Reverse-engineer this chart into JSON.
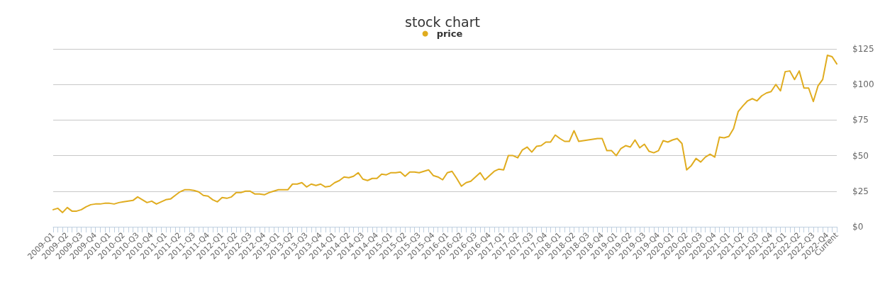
{
  "chart_data": {
    "type": "line",
    "title": "stock chart",
    "categories": [
      "2009-Q1",
      null,
      null,
      "2009-Q2",
      null,
      null,
      "2009-Q3",
      null,
      null,
      "2009-Q4",
      null,
      null,
      "2010-Q1",
      null,
      null,
      "2010-Q2",
      null,
      null,
      "2010-Q3",
      null,
      null,
      "2010-Q4",
      null,
      null,
      "2011-Q1",
      null,
      null,
      "2011-Q2",
      null,
      null,
      "2011-Q3",
      null,
      null,
      "2011-Q4",
      null,
      null,
      "2012-Q1",
      null,
      null,
      "2012-Q2",
      null,
      null,
      "2012-Q3",
      null,
      null,
      "2012-Q4",
      null,
      null,
      "2013-Q1",
      null,
      null,
      "2013-Q2",
      null,
      null,
      "2013-Q3",
      null,
      null,
      "2013-Q4",
      null,
      null,
      "2014-Q1",
      null,
      null,
      "2014-Q2",
      null,
      null,
      "2014-Q3",
      null,
      null,
      "2014-Q4",
      null,
      null,
      "2015-Q1",
      null,
      null,
      "2015-Q2",
      null,
      null,
      "2015-Q3",
      null,
      null,
      "2015-Q4",
      null,
      null,
      "2016-Q1",
      null,
      null,
      "2016-Q2",
      null,
      null,
      "2016-Q3",
      null,
      null,
      "2016-Q4",
      null,
      null,
      "2017-Q1",
      null,
      null,
      "2017-Q2",
      null,
      null,
      "2017-Q3",
      null,
      null,
      "2017-Q4",
      null,
      null,
      "2018-Q1",
      null,
      null,
      "2018-Q2",
      null,
      null,
      "2018-Q3",
      null,
      null,
      "2018-Q4",
      null,
      null,
      "2019-Q1",
      null,
      null,
      "2019-Q2",
      null,
      null,
      "2019-Q3",
      null,
      null,
      "2019-Q4",
      null,
      null,
      "2020-Q1",
      null,
      null,
      "2020-Q2",
      null,
      null,
      "2020-Q3",
      null,
      null,
      "2020-Q4",
      null,
      null,
      "2021-Q1",
      null,
      null,
      "2021-Q2",
      null,
      null,
      "2021-Q3",
      null,
      null,
      "2021-Q4",
      null,
      null,
      "2022-Q1",
      null,
      null,
      "2022-Q2",
      null,
      null,
      "2022-Q3",
      null,
      null,
      "2022-Q4",
      null,
      "Current"
    ],
    "series": [
      {
        "name": "price",
        "color": "#e0ac1f",
        "values": [
          12,
          13,
          10,
          13.5,
          11,
          11,
          12,
          14,
          15.5,
          16,
          16,
          16.5,
          16.5,
          16,
          17,
          17.5,
          18,
          18.5,
          21,
          19,
          17,
          18,
          16,
          17.5,
          19,
          19.5,
          22,
          24.5,
          26,
          26,
          25.5,
          24.5,
          22,
          21.5,
          19,
          17.5,
          20.5,
          20,
          21,
          24,
          24,
          25,
          25,
          23,
          23,
          22.5,
          24,
          25,
          26,
          26,
          26,
          30,
          30,
          31,
          28,
          30,
          29,
          30,
          28,
          28.5,
          31,
          32.5,
          35,
          34.5,
          35.5,
          38,
          33.5,
          32.5,
          34,
          34,
          37,
          36.5,
          38,
          38,
          38.5,
          35.5,
          38.5,
          38.5,
          38,
          39,
          40,
          36,
          35,
          33,
          38,
          39,
          34,
          28.5,
          31,
          32,
          35,
          38,
          33,
          36,
          39,
          40.5,
          40,
          50,
          50,
          48.5,
          54,
          56,
          52.5,
          56.5,
          57,
          59.5,
          59.5,
          64.5,
          62,
          60,
          60,
          67.5,
          60,
          60.5,
          61,
          61.5,
          62,
          62,
          53.5,
          53.5,
          50,
          55,
          57,
          56,
          61,
          55.5,
          58,
          53,
          52,
          53.5,
          60.5,
          59.5,
          61,
          62,
          58.5,
          40,
          43,
          48,
          45.5,
          49,
          51,
          49,
          63,
          62.5,
          63.5,
          69,
          81,
          85,
          88.5,
          90,
          88.5,
          92,
          94,
          95,
          100,
          95.5,
          109,
          109.5,
          103.5,
          109.5,
          97.5,
          97.5,
          88,
          99,
          103.5,
          120.5,
          119.5,
          114.5
        ]
      }
    ],
    "ylim": [
      0,
      125
    ],
    "yticks": [
      {
        "value": 0,
        "label": "$0"
      },
      {
        "value": 25,
        "label": "$25"
      },
      {
        "value": 50,
        "label": "$50"
      },
      {
        "value": 75,
        "label": "$75"
      },
      {
        "value": 100,
        "label": "$100"
      },
      {
        "value": 125,
        "label": "$125"
      }
    ],
    "grid": "y",
    "legend": "top",
    "marker": "none",
    "line_style": "solid"
  }
}
